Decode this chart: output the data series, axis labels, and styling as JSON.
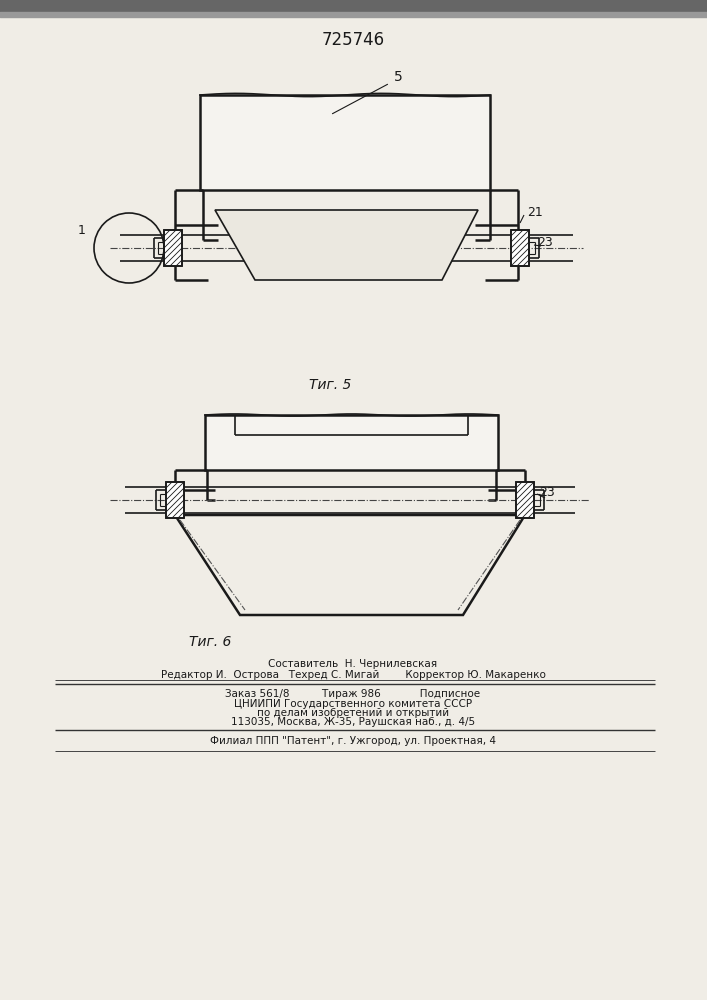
{
  "title": "725746",
  "fig5_label": "Τиг. 5",
  "fig6_label": "Τиг. 6",
  "label_1": "1",
  "label_5": "5",
  "label_21": "21",
  "label_23": "23",
  "label_23b": "23",
  "footer_line1": "Составитель  Н. Чернилевская",
  "footer_line2": "Редактор И.  Острова   Техред С. Мигай        Корректор Ю. Макаренко",
  "footer_line3": "Заказ 561/8          Тираж 986            Подписное",
  "footer_line4": "ЦНИИПИ Государственного комитета СССР",
  "footer_line5": "по делам изобретений и открытий",
  "footer_line6": "113035, Москва, Ж-35, Раушская наб., д. 4/5",
  "footer_line7": "Филиал ППП \"Патент\", г. Ужгород, ул. Проектная, 4",
  "bg_color": "#f0ede6",
  "line_color": "#1a1a1a"
}
